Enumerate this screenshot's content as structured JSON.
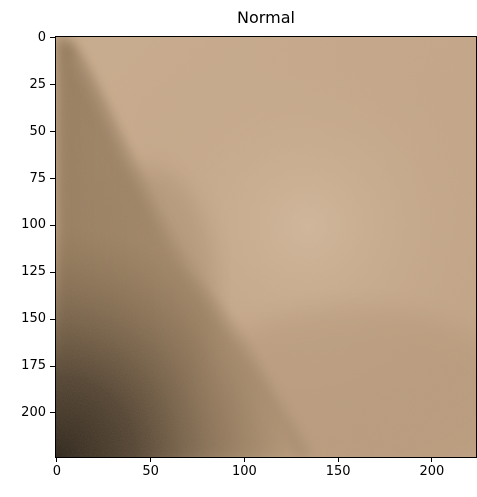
{
  "figure": {
    "title": "Normal"
  },
  "image": {
    "subject": "skin-surface-closeup",
    "colors": {
      "base": "#c3a587",
      "highlight": "#d3b89c",
      "mid_shadow": "#a48666",
      "deep_shadow": "#3d3123"
    }
  },
  "axes": {
    "x": {
      "ticks": [
        0,
        50,
        100,
        150,
        200
      ],
      "labels": [
        "0",
        "50",
        "100",
        "150",
        "200"
      ],
      "range": [
        -0.5,
        223.5
      ]
    },
    "y": {
      "ticks": [
        0,
        25,
        50,
        75,
        100,
        125,
        150,
        175,
        200
      ],
      "labels": [
        "0",
        "25",
        "50",
        "75",
        "100",
        "125",
        "150",
        "175",
        "200"
      ],
      "range": [
        -0.5,
        223.5
      ]
    }
  }
}
